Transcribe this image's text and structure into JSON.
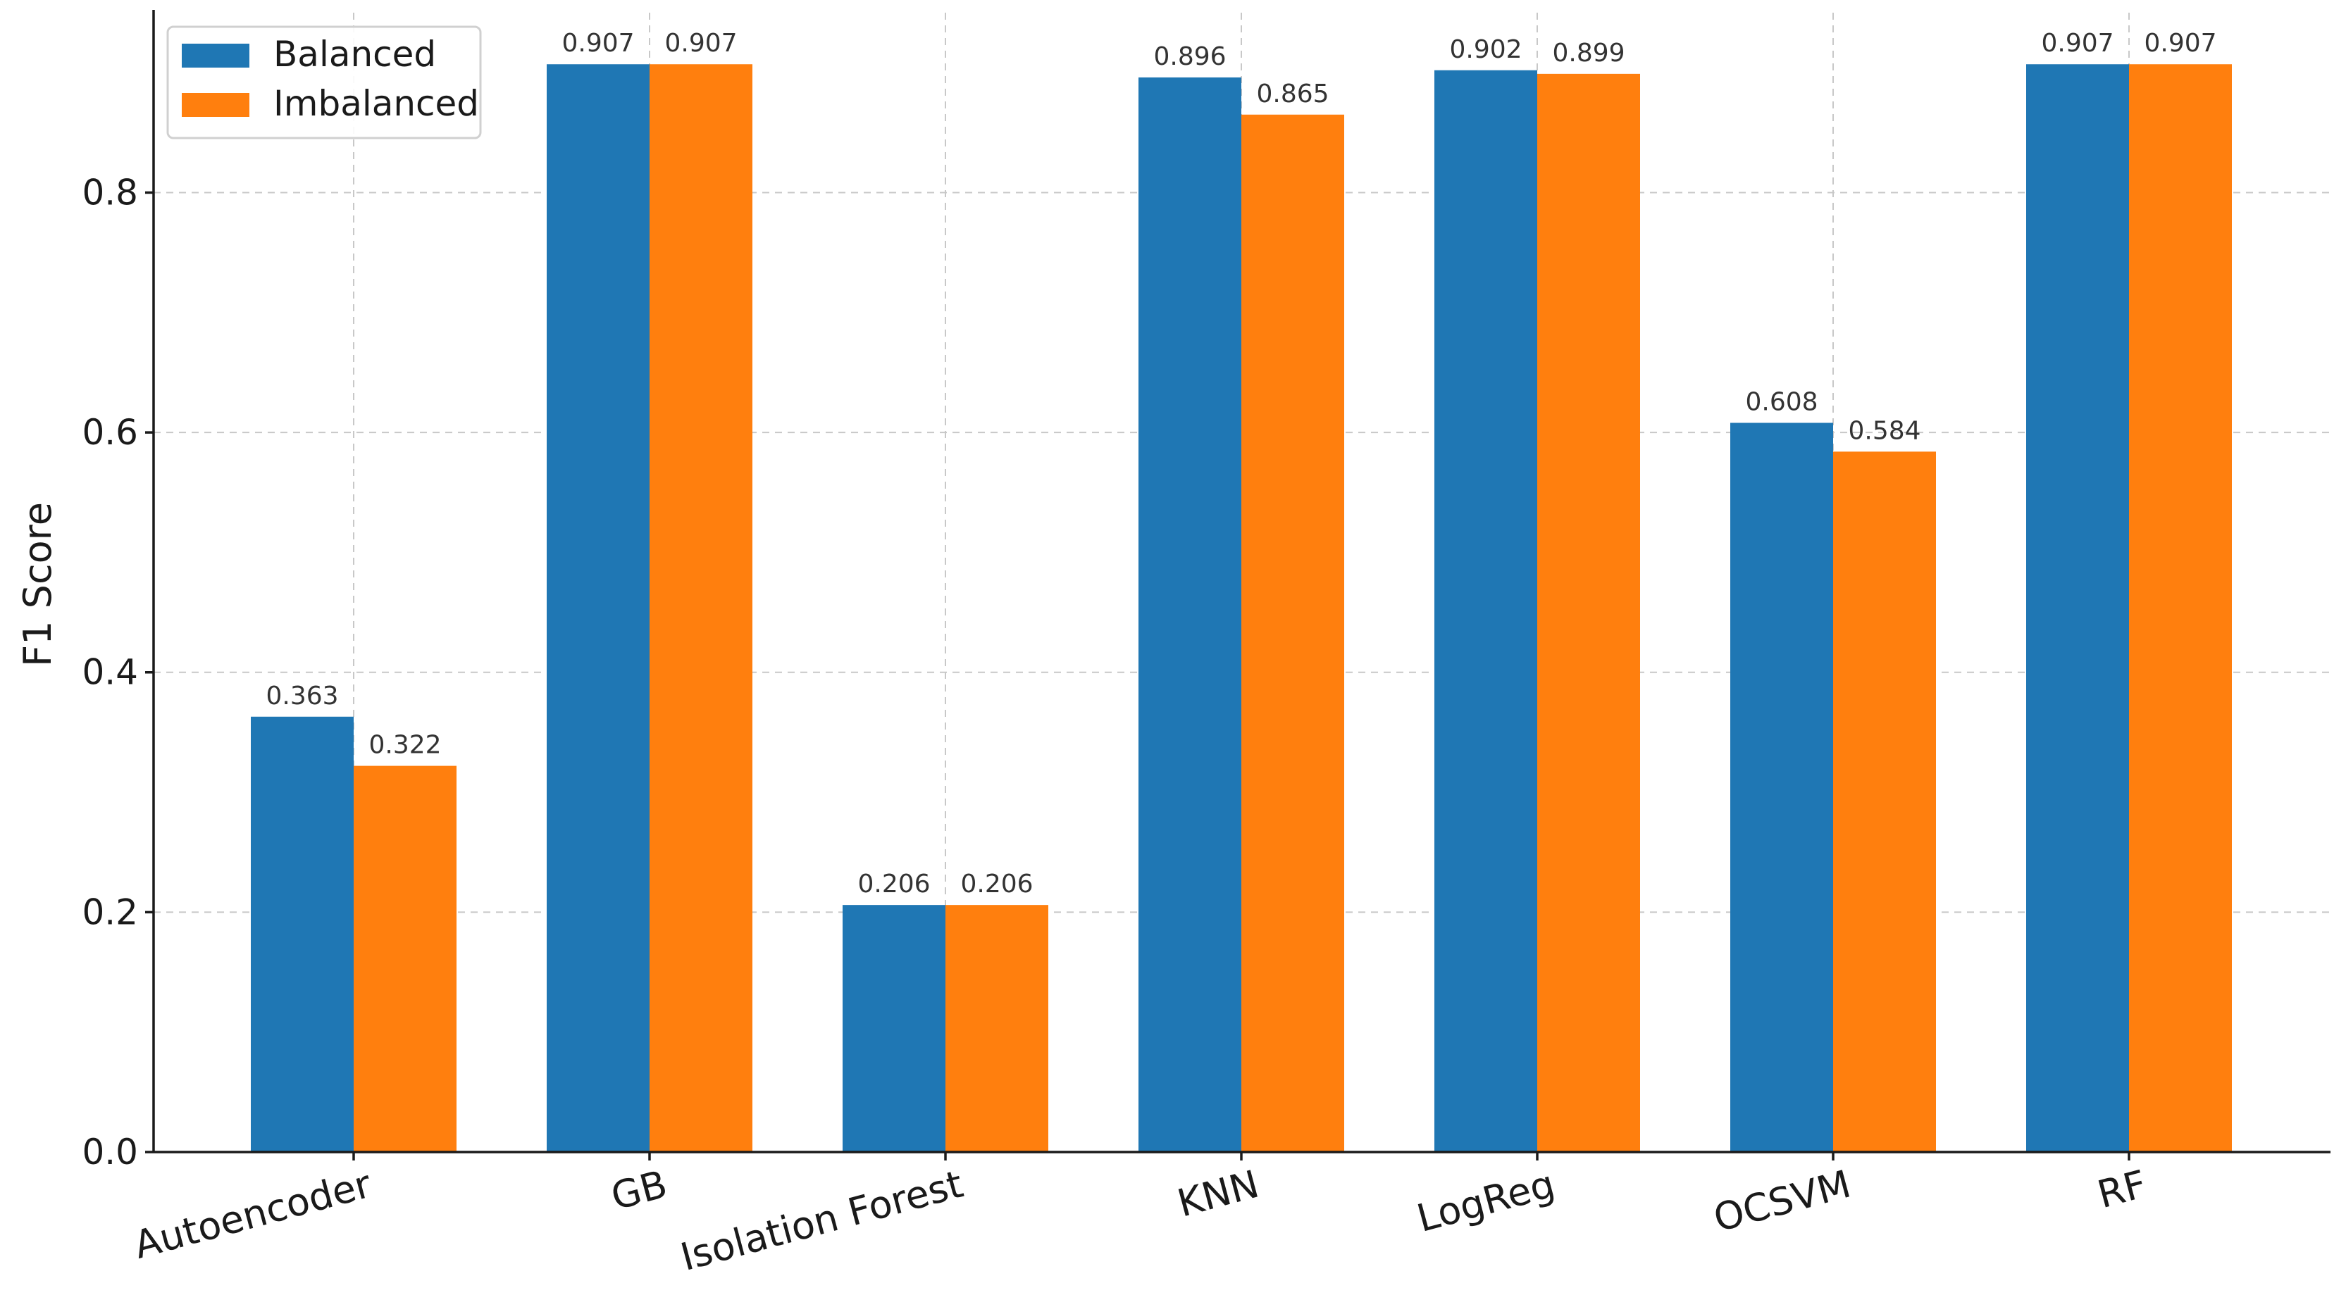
{
  "chart_data": {
    "type": "bar",
    "title": "",
    "xlabel": "",
    "ylabel": "F1 Score",
    "ylim": [
      0,
      0.95
    ],
    "yticks": [
      0.0,
      0.2,
      0.4,
      0.6,
      0.8
    ],
    "ytick_labels": [
      "0.0",
      "0.2",
      "0.4",
      "0.6",
      "0.8"
    ],
    "grid": true,
    "legend_position": "top-left",
    "categories": [
      "Autoencoder",
      "GB",
      "Isolation Forest",
      "KNN",
      "LogReg",
      "OCSVM",
      "RF"
    ],
    "series": [
      {
        "name": "Balanced",
        "color": "#1f77b4",
        "values": [
          0.363,
          0.907,
          0.206,
          0.896,
          0.902,
          0.608,
          0.907
        ],
        "labels": [
          "0.363",
          "0.907",
          "0.206",
          "0.896",
          "0.902",
          "0.608",
          "0.907"
        ]
      },
      {
        "name": "Imbalanced",
        "color": "#ff7f0e",
        "values": [
          0.322,
          0.907,
          0.206,
          0.865,
          0.899,
          0.584,
          0.907
        ],
        "labels": [
          "0.322",
          "0.907",
          "0.206",
          "0.865",
          "0.899",
          "0.584",
          "0.907"
        ]
      }
    ]
  }
}
